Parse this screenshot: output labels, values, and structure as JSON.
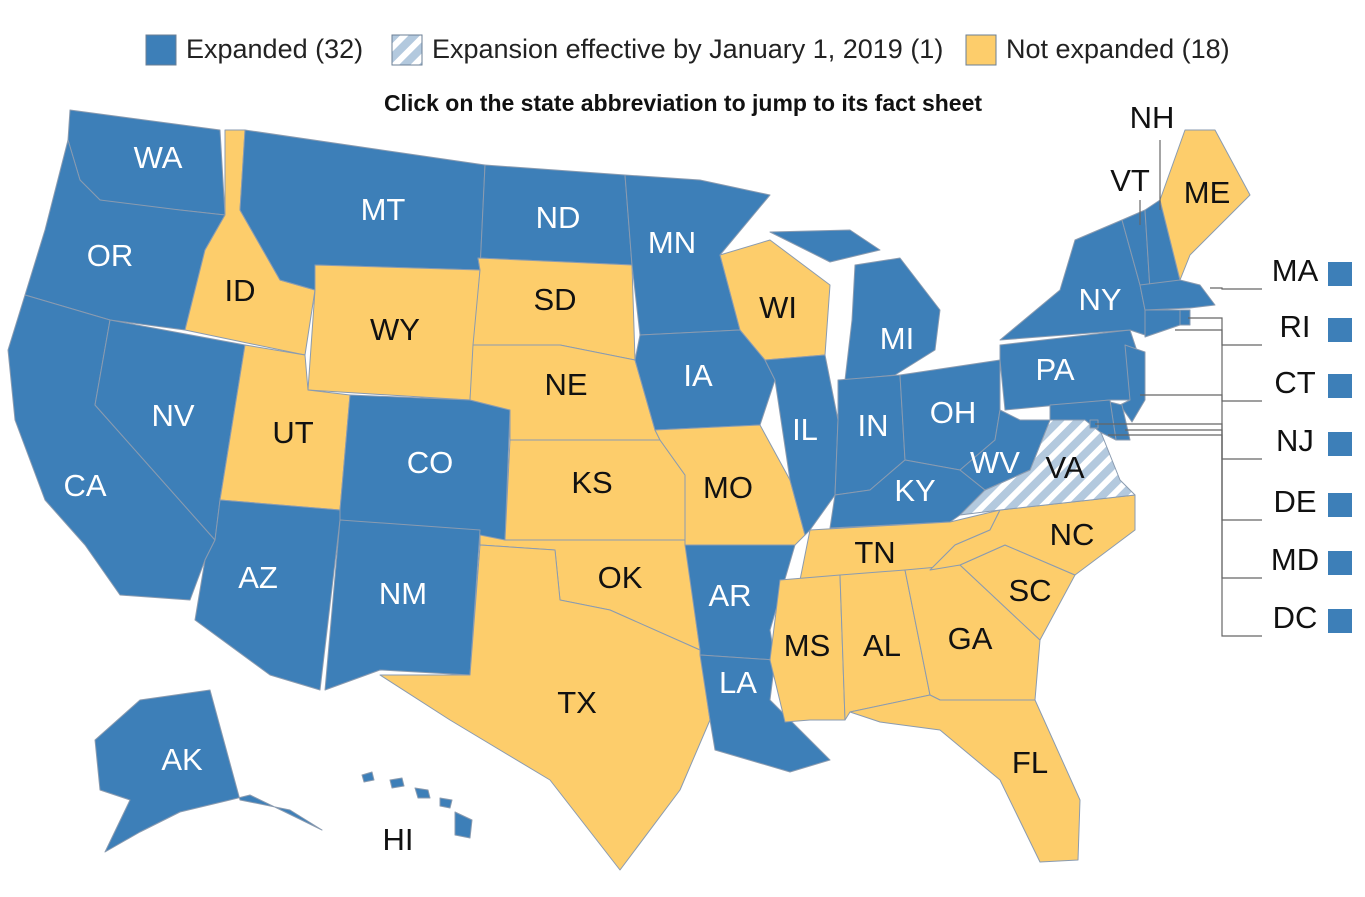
{
  "legend": [
    {
      "label": "Expanded (32)",
      "color": "#3d7fb8"
    },
    {
      "label": "Expansion effective by January 1, 2019 (1)",
      "color": "#b3c9de",
      "pattern": "hatch"
    },
    {
      "label": "Not expanded (18)",
      "color": "#fdcd6b"
    }
  ],
  "instruction": "Click on the state abbreviation to jump to its fact sheet",
  "states": [
    {
      "abbr": "WA",
      "color": "#3d7fb8"
    },
    {
      "abbr": "OR",
      "color": "#3d7fb8"
    },
    {
      "abbr": "CA",
      "color": "#3d7fb8"
    },
    {
      "abbr": "NV",
      "color": "#3d7fb8"
    },
    {
      "abbr": "ID",
      "color": "#fdcd6b"
    },
    {
      "abbr": "MT",
      "color": "#3d7fb8"
    },
    {
      "abbr": "WY",
      "color": "#fdcd6b"
    },
    {
      "abbr": "UT",
      "color": "#fdcd6b"
    },
    {
      "abbr": "CO",
      "color": "#3d7fb8"
    },
    {
      "abbr": "AZ",
      "color": "#3d7fb8"
    },
    {
      "abbr": "NM",
      "color": "#3d7fb8"
    },
    {
      "abbr": "ND",
      "color": "#3d7fb8"
    },
    {
      "abbr": "SD",
      "color": "#fdcd6b"
    },
    {
      "abbr": "NE",
      "color": "#fdcd6b"
    },
    {
      "abbr": "KS",
      "color": "#fdcd6b"
    },
    {
      "abbr": "OK",
      "color": "#fdcd6b"
    },
    {
      "abbr": "TX",
      "color": "#fdcd6b"
    },
    {
      "abbr": "MN",
      "color": "#3d7fb8"
    },
    {
      "abbr": "IA",
      "color": "#3d7fb8"
    },
    {
      "abbr": "MO",
      "color": "#fdcd6b"
    },
    {
      "abbr": "AR",
      "color": "#3d7fb8"
    },
    {
      "abbr": "LA",
      "color": "#3d7fb8"
    },
    {
      "abbr": "WI",
      "color": "#fdcd6b"
    },
    {
      "abbr": "IL",
      "color": "#3d7fb8"
    },
    {
      "abbr": "MI",
      "color": "#3d7fb8"
    },
    {
      "abbr": "IN",
      "color": "#3d7fb8"
    },
    {
      "abbr": "OH",
      "color": "#3d7fb8"
    },
    {
      "abbr": "KY",
      "color": "#3d7fb8"
    },
    {
      "abbr": "TN",
      "color": "#fdcd6b"
    },
    {
      "abbr": "MS",
      "color": "#fdcd6b"
    },
    {
      "abbr": "AL",
      "color": "#fdcd6b"
    },
    {
      "abbr": "GA",
      "color": "#fdcd6b"
    },
    {
      "abbr": "FL",
      "color": "#fdcd6b"
    },
    {
      "abbr": "SC",
      "color": "#fdcd6b"
    },
    {
      "abbr": "NC",
      "color": "#fdcd6b"
    },
    {
      "abbr": "VA",
      "color": "#b3c9de",
      "pattern": "hatch"
    },
    {
      "abbr": "WV",
      "color": "#3d7fb8"
    },
    {
      "abbr": "PA",
      "color": "#3d7fb8"
    },
    {
      "abbr": "NY",
      "color": "#3d7fb8"
    },
    {
      "abbr": "VT",
      "color": "#3d7fb8"
    },
    {
      "abbr": "NH",
      "color": "#3d7fb8"
    },
    {
      "abbr": "ME",
      "color": "#fdcd6b"
    },
    {
      "abbr": "MA",
      "color": "#3d7fb8"
    },
    {
      "abbr": "RI",
      "color": "#3d7fb8"
    },
    {
      "abbr": "CT",
      "color": "#3d7fb8"
    },
    {
      "abbr": "NJ",
      "color": "#3d7fb8"
    },
    {
      "abbr": "DE",
      "color": "#3d7fb8"
    },
    {
      "abbr": "MD",
      "color": "#3d7fb8"
    },
    {
      "abbr": "DC",
      "color": "#3d7fb8"
    },
    {
      "abbr": "AK",
      "color": "#3d7fb8"
    },
    {
      "abbr": "HI",
      "color": "#3d7fb8"
    }
  ]
}
